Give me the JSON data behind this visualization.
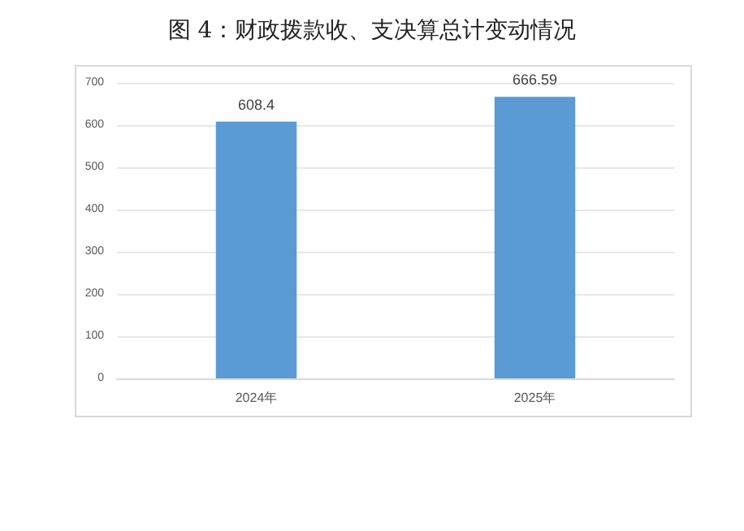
{
  "chart_data": {
    "type": "bar",
    "title": "图 4：财政拨款收、支决算总计变动情况",
    "categories": [
      "2024年",
      "2025年"
    ],
    "values": [
      608.4,
      666.59
    ],
    "color": "#5b9bd5",
    "ylim": [
      0,
      700
    ],
    "yticks": [
      0,
      100,
      200,
      300,
      400,
      500,
      600,
      700
    ],
    "grid": "y",
    "data_labels": true
  }
}
